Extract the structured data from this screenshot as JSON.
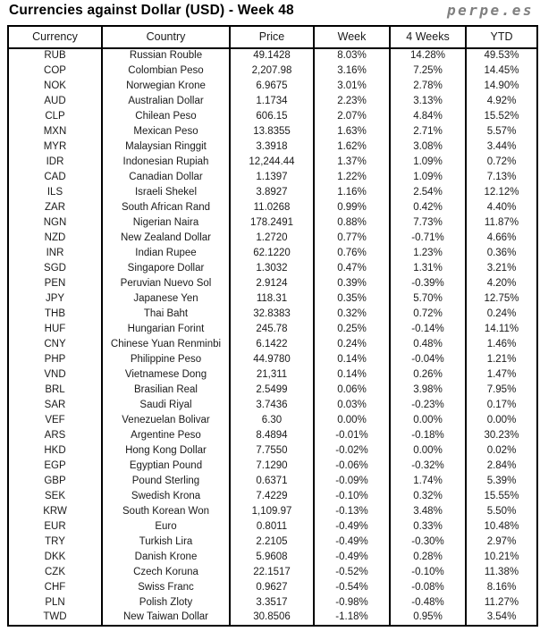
{
  "header": {
    "title": "Currencies against Dollar (USD) - Week 48",
    "brand": "perpe.es"
  },
  "colors": {
    "positive": "#2da078",
    "negative": "#ff5050",
    "text": "#1a1a1a",
    "brand_gray": "#7f7f7f",
    "border": "#000000"
  },
  "chart_data": {
    "type": "table",
    "title": "Currencies against Dollar (USD) - Week 48",
    "columns": [
      "Currency",
      "Country",
      "Price",
      "Week",
      "4 Weeks",
      "YTD"
    ],
    "rows": [
      {
        "code": "RUB",
        "country": "Russian Rouble",
        "price": "49.1428",
        "week": "8.03%",
        "week_dir": "up",
        "w4": "14.28%",
        "w4_dir": "up",
        "ytd": "49.53%",
        "ytd_dir": "up"
      },
      {
        "code": "COP",
        "country": "Colombian Peso",
        "price": "2,207.98",
        "week": "3.16%",
        "week_dir": "up",
        "w4": "7.25%",
        "w4_dir": "up",
        "ytd": "14.45%",
        "ytd_dir": "up"
      },
      {
        "code": "NOK",
        "country": "Norwegian Krone",
        "price": "6.9675",
        "week": "3.01%",
        "week_dir": "up",
        "w4": "2.78%",
        "w4_dir": "up",
        "ytd": "14.90%",
        "ytd_dir": "up"
      },
      {
        "code": "AUD",
        "country": "Australian Dollar",
        "price": "1.1734",
        "week": "2.23%",
        "week_dir": "up",
        "w4": "3.13%",
        "w4_dir": "up",
        "ytd": "4.92%",
        "ytd_dir": "up"
      },
      {
        "code": "CLP",
        "country": "Chilean Peso",
        "price": "606.15",
        "week": "2.07%",
        "week_dir": "up",
        "w4": "4.84%",
        "w4_dir": "up",
        "ytd": "15.52%",
        "ytd_dir": "up"
      },
      {
        "code": "MXN",
        "country": "Mexican Peso",
        "price": "13.8355",
        "week": "1.63%",
        "week_dir": "up",
        "w4": "2.71%",
        "w4_dir": "up",
        "ytd": "5.57%",
        "ytd_dir": "up"
      },
      {
        "code": "MYR",
        "country": "Malaysian Ringgit",
        "price": "3.3918",
        "week": "1.62%",
        "week_dir": "up",
        "w4": "3.08%",
        "w4_dir": "up",
        "ytd": "3.44%",
        "ytd_dir": "up"
      },
      {
        "code": "IDR",
        "country": "Indonesian Rupiah",
        "price": "12,244.44",
        "week": "1.37%",
        "week_dir": "up",
        "w4": "1.09%",
        "w4_dir": "up",
        "ytd": "0.72%",
        "ytd_dir": "up"
      },
      {
        "code": "CAD",
        "country": "Canadian Dollar",
        "price": "1.1397",
        "week": "1.22%",
        "week_dir": "up",
        "w4": "1.09%",
        "w4_dir": "up",
        "ytd": "7.13%",
        "ytd_dir": "up"
      },
      {
        "code": "ILS",
        "country": "Israeli Shekel",
        "price": "3.8927",
        "week": "1.16%",
        "week_dir": "up",
        "w4": "2.54%",
        "w4_dir": "up",
        "ytd": "12.12%",
        "ytd_dir": "up"
      },
      {
        "code": "ZAR",
        "country": "South African Rand",
        "price": "11.0268",
        "week": "0.99%",
        "week_dir": "up",
        "w4": "0.42%",
        "w4_dir": "up",
        "ytd": "4.40%",
        "ytd_dir": "up"
      },
      {
        "code": "NGN",
        "country": "Nigerian Naira",
        "price": "178.2491",
        "week": "0.88%",
        "week_dir": "up",
        "w4": "7.73%",
        "w4_dir": "up",
        "ytd": "11.87%",
        "ytd_dir": "up"
      },
      {
        "code": "NZD",
        "country": "New Zealand Dollar",
        "price": "1.2720",
        "week": "0.77%",
        "week_dir": "up",
        "w4": "-0.71%",
        "w4_dir": "down",
        "ytd": "4.66%",
        "ytd_dir": "up"
      },
      {
        "code": "INR",
        "country": "Indian Rupee",
        "price": "62.1220",
        "week": "0.76%",
        "week_dir": "up",
        "w4": "1.23%",
        "w4_dir": "up",
        "ytd": "0.36%",
        "ytd_dir": "up"
      },
      {
        "code": "SGD",
        "country": "Singapore Dollar",
        "price": "1.3032",
        "week": "0.47%",
        "week_dir": "up",
        "w4": "1.31%",
        "w4_dir": "up",
        "ytd": "3.21%",
        "ytd_dir": "up"
      },
      {
        "code": "PEN",
        "country": "Peruvian Nuevo Sol",
        "price": "2.9124",
        "week": "0.39%",
        "week_dir": "up",
        "w4": "-0.39%",
        "w4_dir": "down",
        "ytd": "4.20%",
        "ytd_dir": "up"
      },
      {
        "code": "JPY",
        "country": "Japanese Yen",
        "price": "118.31",
        "week": "0.35%",
        "week_dir": "up",
        "w4": "5.70%",
        "w4_dir": "up",
        "ytd": "12.75%",
        "ytd_dir": "up"
      },
      {
        "code": "THB",
        "country": "Thai Baht",
        "price": "32.8383",
        "week": "0.32%",
        "week_dir": "up",
        "w4": "0.72%",
        "w4_dir": "up",
        "ytd": "0.24%",
        "ytd_dir": "up"
      },
      {
        "code": "HUF",
        "country": "Hungarian Forint",
        "price": "245.78",
        "week": "0.25%",
        "week_dir": "up",
        "w4": "-0.14%",
        "w4_dir": "down",
        "ytd": "14.11%",
        "ytd_dir": "up"
      },
      {
        "code": "CNY",
        "country": "Chinese Yuan Renminbi",
        "price": "6.1422",
        "week": "0.24%",
        "week_dir": "up",
        "w4": "0.48%",
        "w4_dir": "up",
        "ytd": "1.46%",
        "ytd_dir": "up"
      },
      {
        "code": "PHP",
        "country": "Philippine Peso",
        "price": "44.9780",
        "week": "0.14%",
        "week_dir": "up",
        "w4": "-0.04%",
        "w4_dir": "down",
        "ytd": "1.21%",
        "ytd_dir": "up"
      },
      {
        "code": "VND",
        "country": "Vietnamese Dong",
        "price": "21,311",
        "week": "0.14%",
        "week_dir": "up",
        "w4": "0.26%",
        "w4_dir": "up",
        "ytd": "1.47%",
        "ytd_dir": "up"
      },
      {
        "code": "BRL",
        "country": "Brasilian Real",
        "price": "2.5499",
        "week": "0.06%",
        "week_dir": "up",
        "w4": "3.98%",
        "w4_dir": "up",
        "ytd": "7.95%",
        "ytd_dir": "up"
      },
      {
        "code": "SAR",
        "country": "Saudi Riyal",
        "price": "3.7436",
        "week": "0.03%",
        "week_dir": "up",
        "w4": "-0.23%",
        "w4_dir": "down",
        "ytd": "0.17%",
        "ytd_dir": "up"
      },
      {
        "code": "VEF",
        "country": "Venezuelan Bolivar",
        "price": "6.30",
        "week": "0.00%",
        "week_dir": "up",
        "w4": "0.00%",
        "w4_dir": "up",
        "ytd": "0.00%",
        "ytd_dir": "up"
      },
      {
        "code": "ARS",
        "country": "Argentine Peso",
        "price": "8.4894",
        "week": "-0.01%",
        "week_dir": "down",
        "w4": "-0.18%",
        "w4_dir": "down",
        "ytd": "30.23%",
        "ytd_dir": "up"
      },
      {
        "code": "HKD",
        "country": "Hong Kong Dollar",
        "price": "7.7550",
        "week": "-0.02%",
        "week_dir": "down",
        "w4": "0.00%",
        "w4_dir": "down",
        "ytd": "0.02%",
        "ytd_dir": "up"
      },
      {
        "code": "EGP",
        "country": "Egyptian Pound",
        "price": "7.1290",
        "week": "-0.06%",
        "week_dir": "down",
        "w4": "-0.32%",
        "w4_dir": "down",
        "ytd": "2.84%",
        "ytd_dir": "up"
      },
      {
        "code": "GBP",
        "country": "Pound Sterling",
        "price": "0.6371",
        "week": "-0.09%",
        "week_dir": "down",
        "w4": "1.74%",
        "w4_dir": "up",
        "ytd": "5.39%",
        "ytd_dir": "up"
      },
      {
        "code": "SEK",
        "country": "Swedish Krona",
        "price": "7.4229",
        "week": "-0.10%",
        "week_dir": "down",
        "w4": "0.32%",
        "w4_dir": "up",
        "ytd": "15.55%",
        "ytd_dir": "up"
      },
      {
        "code": "KRW",
        "country": "South Korean Won",
        "price": "1,109.97",
        "week": "-0.13%",
        "week_dir": "down",
        "w4": "3.48%",
        "w4_dir": "up",
        "ytd": "5.50%",
        "ytd_dir": "up"
      },
      {
        "code": "EUR",
        "country": "Euro",
        "price": "0.8011",
        "week": "-0.49%",
        "week_dir": "down",
        "w4": "0.33%",
        "w4_dir": "up",
        "ytd": "10.48%",
        "ytd_dir": "up"
      },
      {
        "code": "TRY",
        "country": "Turkish Lira",
        "price": "2.2105",
        "week": "-0.49%",
        "week_dir": "down",
        "w4": "-0.30%",
        "w4_dir": "down",
        "ytd": "2.97%",
        "ytd_dir": "up"
      },
      {
        "code": "DKK",
        "country": "Danish Krone",
        "price": "5.9608",
        "week": "-0.49%",
        "week_dir": "down",
        "w4": "0.28%",
        "w4_dir": "up",
        "ytd": "10.21%",
        "ytd_dir": "up"
      },
      {
        "code": "CZK",
        "country": "Czech Koruna",
        "price": "22.1517",
        "week": "-0.52%",
        "week_dir": "down",
        "w4": "-0.10%",
        "w4_dir": "down",
        "ytd": "11.38%",
        "ytd_dir": "up"
      },
      {
        "code": "CHF",
        "country": "Swiss Franc",
        "price": "0.9627",
        "week": "-0.54%",
        "week_dir": "down",
        "w4": "-0.08%",
        "w4_dir": "down",
        "ytd": "8.16%",
        "ytd_dir": "up"
      },
      {
        "code": "PLN",
        "country": "Polish Zloty",
        "price": "3.3517",
        "week": "-0.98%",
        "week_dir": "down",
        "w4": "-0.48%",
        "w4_dir": "down",
        "ytd": "11.27%",
        "ytd_dir": "up"
      },
      {
        "code": "TWD",
        "country": "New Taiwan Dollar",
        "price": "30.8506",
        "week": "-1.18%",
        "week_dir": "down",
        "w4": "0.95%",
        "w4_dir": "up",
        "ytd": "3.54%",
        "ytd_dir": "up"
      }
    ]
  }
}
